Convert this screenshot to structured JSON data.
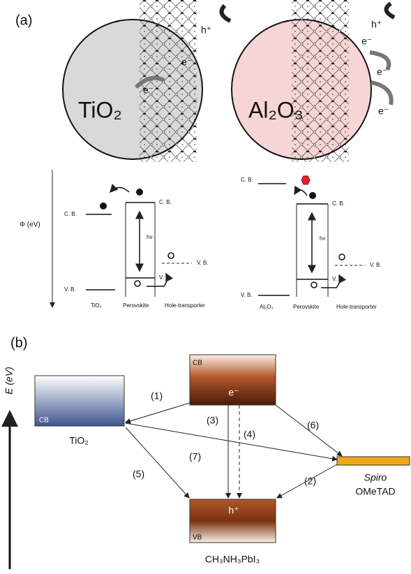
{
  "panel_a": {
    "label": "(a)",
    "particles": [
      {
        "label": "TiO₂",
        "electron_labels": [
          "e⁻",
          "e⁻"
        ],
        "hole_label": "h⁺"
      },
      {
        "label": "Al₂O₃",
        "electron_labels": [
          "e⁻",
          "e⁻",
          "e⁻"
        ],
        "hole_label": "h⁺"
      }
    ],
    "energy_axis": "Φ (eV)",
    "diagrams": [
      {
        "left_cb": "C. B.",
        "left_vb": "V. B.",
        "pero_cb": "C. B.",
        "pero_vb": "V. B.",
        "htm_vb": "V. B.",
        "photon": "hν",
        "columns": [
          "TiO₂",
          "Perovskite",
          "Hole-transporter"
        ]
      },
      {
        "left_cb": "C. B.",
        "left_vb": "V. B.",
        "pero_cb": "C. B.",
        "pero_vb": "V. B.",
        "htm_vb": "V. B.",
        "photon": "hν",
        "columns": [
          "Al₂O₃",
          "Perovskite",
          "Hole-transporter"
        ]
      }
    ]
  },
  "panel_b": {
    "label": "(b)",
    "energy_axis": "E (eV)",
    "tio2": {
      "band": "CB",
      "name": "TiO₂"
    },
    "perovskite": {
      "cb": "CB",
      "electron": "e⁻",
      "hole": "h⁺",
      "vb": "VB",
      "name": "CH₃NH₃PbI₃"
    },
    "spiro": {
      "name_top": "Spiro",
      "name_bottom": "OMeTAD"
    },
    "processes": [
      "(1)",
      "(2)",
      "(3)",
      "(4)",
      "(5)",
      "(6)",
      "(7)"
    ]
  }
}
